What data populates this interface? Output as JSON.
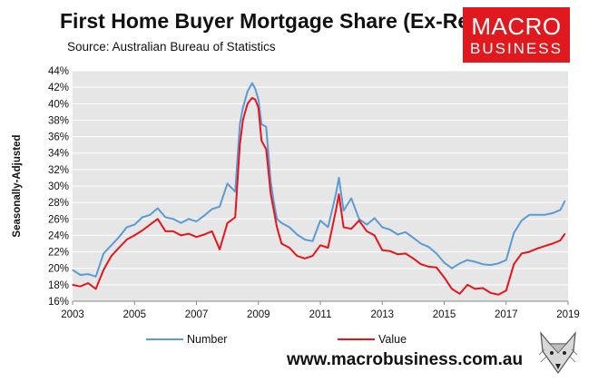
{
  "header": {
    "title": "First Home Buyer Mortgage Share (Ex-Refi)",
    "source": "Source: Australian Bureau of Statistics"
  },
  "logo": {
    "line1": "MACRO",
    "line2": "BUSINESS",
    "color": "#e0191e"
  },
  "footer": {
    "url": "www.macrobusiness.com.au",
    "mascot_icon": "fox-head-icon"
  },
  "chart_data": {
    "type": "line",
    "title": "First Home Buyer Mortgage Share (Ex-Refi)",
    "xlabel": "",
    "ylabel": "Seasonally-Adjusted",
    "xlim": [
      2003,
      2019
    ],
    "ylim": [
      16,
      44
    ],
    "x_ticks": [
      "2003",
      "2005",
      "2007",
      "2009",
      "2011",
      "2013",
      "2015",
      "2017",
      "2019"
    ],
    "y_ticks": [
      "16%",
      "18%",
      "20%",
      "22%",
      "24%",
      "26%",
      "28%",
      "30%",
      "32%",
      "34%",
      "36%",
      "38%",
      "40%",
      "42%",
      "44%"
    ],
    "grid": "horizontal",
    "plot_background": "#e6e6e6",
    "legend_position": "bottom",
    "series": [
      {
        "name": "Number",
        "color": "#5b9bd5",
        "x": [
          2003.0,
          2003.25,
          2003.5,
          2003.75,
          2004.0,
          2004.25,
          2004.5,
          2004.75,
          2005.0,
          2005.25,
          2005.5,
          2005.75,
          2006.0,
          2006.25,
          2006.5,
          2006.75,
          2007.0,
          2007.25,
          2007.5,
          2007.75,
          2008.0,
          2008.25,
          2008.4,
          2008.5,
          2008.65,
          2008.8,
          2008.9,
          2009.0,
          2009.1,
          2009.25,
          2009.4,
          2009.5,
          2009.6,
          2009.75,
          2010.0,
          2010.25,
          2010.5,
          2010.75,
          2011.0,
          2011.25,
          2011.5,
          2011.6,
          2011.75,
          2012.0,
          2012.25,
          2012.5,
          2012.75,
          2013.0,
          2013.25,
          2013.5,
          2013.75,
          2014.0,
          2014.25,
          2014.5,
          2014.75,
          2015.0,
          2015.25,
          2015.5,
          2015.75,
          2016.0,
          2016.25,
          2016.5,
          2016.75,
          2017.0,
          2017.25,
          2017.5,
          2017.75,
          2018.0,
          2018.25,
          2018.5,
          2018.75,
          2018.9
        ],
        "y": [
          19.8,
          19.2,
          19.3,
          19.0,
          21.8,
          22.8,
          23.8,
          25.0,
          25.3,
          26.2,
          26.5,
          27.3,
          26.2,
          26.0,
          25.5,
          26.0,
          25.7,
          26.4,
          27.2,
          27.5,
          30.3,
          29.3,
          37.5,
          39.5,
          41.5,
          42.5,
          41.8,
          40.5,
          37.5,
          37.2,
          30.5,
          28.0,
          26.0,
          25.5,
          25.0,
          24.1,
          23.5,
          23.3,
          25.8,
          25.0,
          29.0,
          31.0,
          27.0,
          28.5,
          26.0,
          25.3,
          26.1,
          25.0,
          24.7,
          24.1,
          24.4,
          23.7,
          23.0,
          22.6,
          21.8,
          20.7,
          20.0,
          20.6,
          21.0,
          20.8,
          20.5,
          20.4,
          20.6,
          21.0,
          24.3,
          25.8,
          26.5,
          26.5,
          26.5,
          26.7,
          27.1,
          28.2
        ]
      },
      {
        "name": "Value",
        "color": "#e8141b",
        "x": [
          2003.0,
          2003.25,
          2003.5,
          2003.75,
          2004.0,
          2004.25,
          2004.5,
          2004.75,
          2005.0,
          2005.25,
          2005.5,
          2005.75,
          2006.0,
          2006.25,
          2006.5,
          2006.75,
          2007.0,
          2007.25,
          2007.5,
          2007.75,
          2008.0,
          2008.25,
          2008.4,
          2008.5,
          2008.65,
          2008.8,
          2008.9,
          2009.0,
          2009.1,
          2009.25,
          2009.4,
          2009.5,
          2009.6,
          2009.75,
          2010.0,
          2010.25,
          2010.5,
          2010.75,
          2011.0,
          2011.25,
          2011.5,
          2011.6,
          2011.75,
          2012.0,
          2012.25,
          2012.5,
          2012.75,
          2013.0,
          2013.25,
          2013.5,
          2013.75,
          2014.0,
          2014.25,
          2014.5,
          2014.75,
          2015.0,
          2015.25,
          2015.5,
          2015.75,
          2016.0,
          2016.25,
          2016.5,
          2016.75,
          2017.0,
          2017.25,
          2017.5,
          2017.75,
          2018.0,
          2018.25,
          2018.5,
          2018.75,
          2018.9
        ],
        "y": [
          18.0,
          17.8,
          18.2,
          17.5,
          19.8,
          21.5,
          22.5,
          23.5,
          24.0,
          24.6,
          25.3,
          26.0,
          24.5,
          24.5,
          24.0,
          24.2,
          23.8,
          24.1,
          24.5,
          22.3,
          25.5,
          26.2,
          35.0,
          38.0,
          40.0,
          40.7,
          40.5,
          39.5,
          35.5,
          34.5,
          29.0,
          27.0,
          25.0,
          23.0,
          22.5,
          21.5,
          21.2,
          21.5,
          22.8,
          22.5,
          27.0,
          29.0,
          25.0,
          24.8,
          25.8,
          24.5,
          24.0,
          22.2,
          22.1,
          21.7,
          21.8,
          21.2,
          20.5,
          20.2,
          20.1,
          18.9,
          17.5,
          16.9,
          18.0,
          17.5,
          17.6,
          17.0,
          16.8,
          17.3,
          20.5,
          21.8,
          22.0,
          22.4,
          22.7,
          23.0,
          23.4,
          24.2
        ]
      }
    ]
  }
}
